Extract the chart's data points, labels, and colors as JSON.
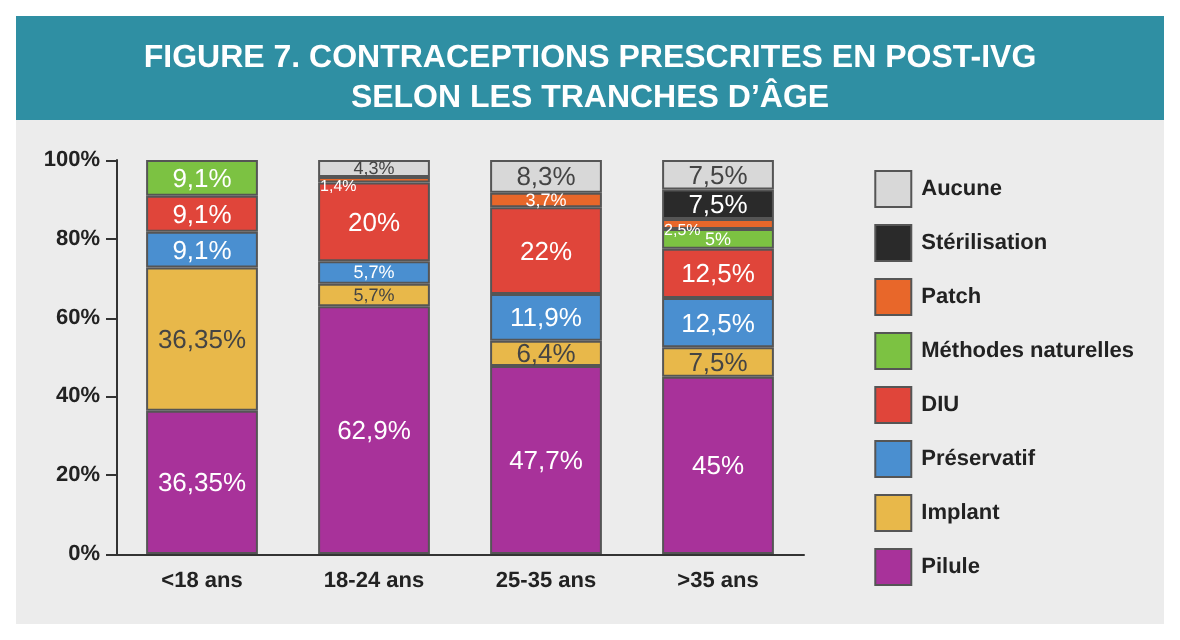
{
  "chart_data": {
    "type": "bar",
    "stacked": true,
    "title": "FIGURE 7. CONTRACEPTIONS PRESCRITES EN POST-IVG\nSELON LES TRANCHES D’ÂGE",
    "categories": [
      "<18 ans",
      "18-24 ans",
      "25-35 ans",
      ">35 ans"
    ],
    "series": [
      {
        "name": "Pilule",
        "color": "#a8329a",
        "values": [
          36.35,
          62.9,
          47.7,
          45
        ],
        "value_labels": [
          "36,35%",
          "62,9%",
          "47,7%",
          "45%"
        ]
      },
      {
        "name": "Implant",
        "color": "#e8b84a",
        "values": [
          36.35,
          5.7,
          6.4,
          7.5
        ],
        "value_labels": [
          "36,35%",
          "5,7%",
          "6,4%",
          "7,5%"
        ]
      },
      {
        "name": "Préservatif",
        "color": "#4a8fd0",
        "values": [
          9.1,
          5.7,
          11.9,
          12.5
        ],
        "value_labels": [
          "9,1%",
          "5,7%",
          "11,9%",
          "12,5%"
        ]
      },
      {
        "name": "DIU",
        "color": "#e0453a",
        "values": [
          9.1,
          20,
          22,
          12.5
        ],
        "value_labels": [
          "9,1%",
          "20%",
          "22%",
          "12,5%"
        ]
      },
      {
        "name": "Méthodes naturelles",
        "color": "#7cc242",
        "values": [
          9.1,
          null,
          null,
          5
        ],
        "value_labels": [
          "9,1%",
          null,
          null,
          "5%"
        ]
      },
      {
        "name": "Patch",
        "color": "#e8672a",
        "values": [
          null,
          1.4,
          3.7,
          2.5
        ],
        "value_labels": [
          null,
          "1,4%",
          "3,7%",
          "2,5%"
        ]
      },
      {
        "name": "Stérilisation",
        "color": "#2a2a2a",
        "values": [
          null,
          null,
          null,
          7.5
        ],
        "value_labels": [
          null,
          null,
          null,
          "7,5%"
        ]
      },
      {
        "name": "Aucune",
        "color": "#d8d8d8",
        "values": [
          null,
          4.3,
          8.3,
          7.5
        ],
        "value_labels": [
          null,
          "4,3%",
          "8,3%",
          "7,5%"
        ]
      }
    ],
    "ylim": [
      0,
      100
    ],
    "yticks": [
      {
        "value": 0,
        "label": "0%"
      },
      {
        "value": 20,
        "label": "20%"
      },
      {
        "value": 40,
        "label": "40%"
      },
      {
        "value": 60,
        "label": "60%"
      },
      {
        "value": 80,
        "label": "80%"
      },
      {
        "value": 100,
        "label": "100%"
      }
    ],
    "grid": false,
    "legend": "right"
  }
}
